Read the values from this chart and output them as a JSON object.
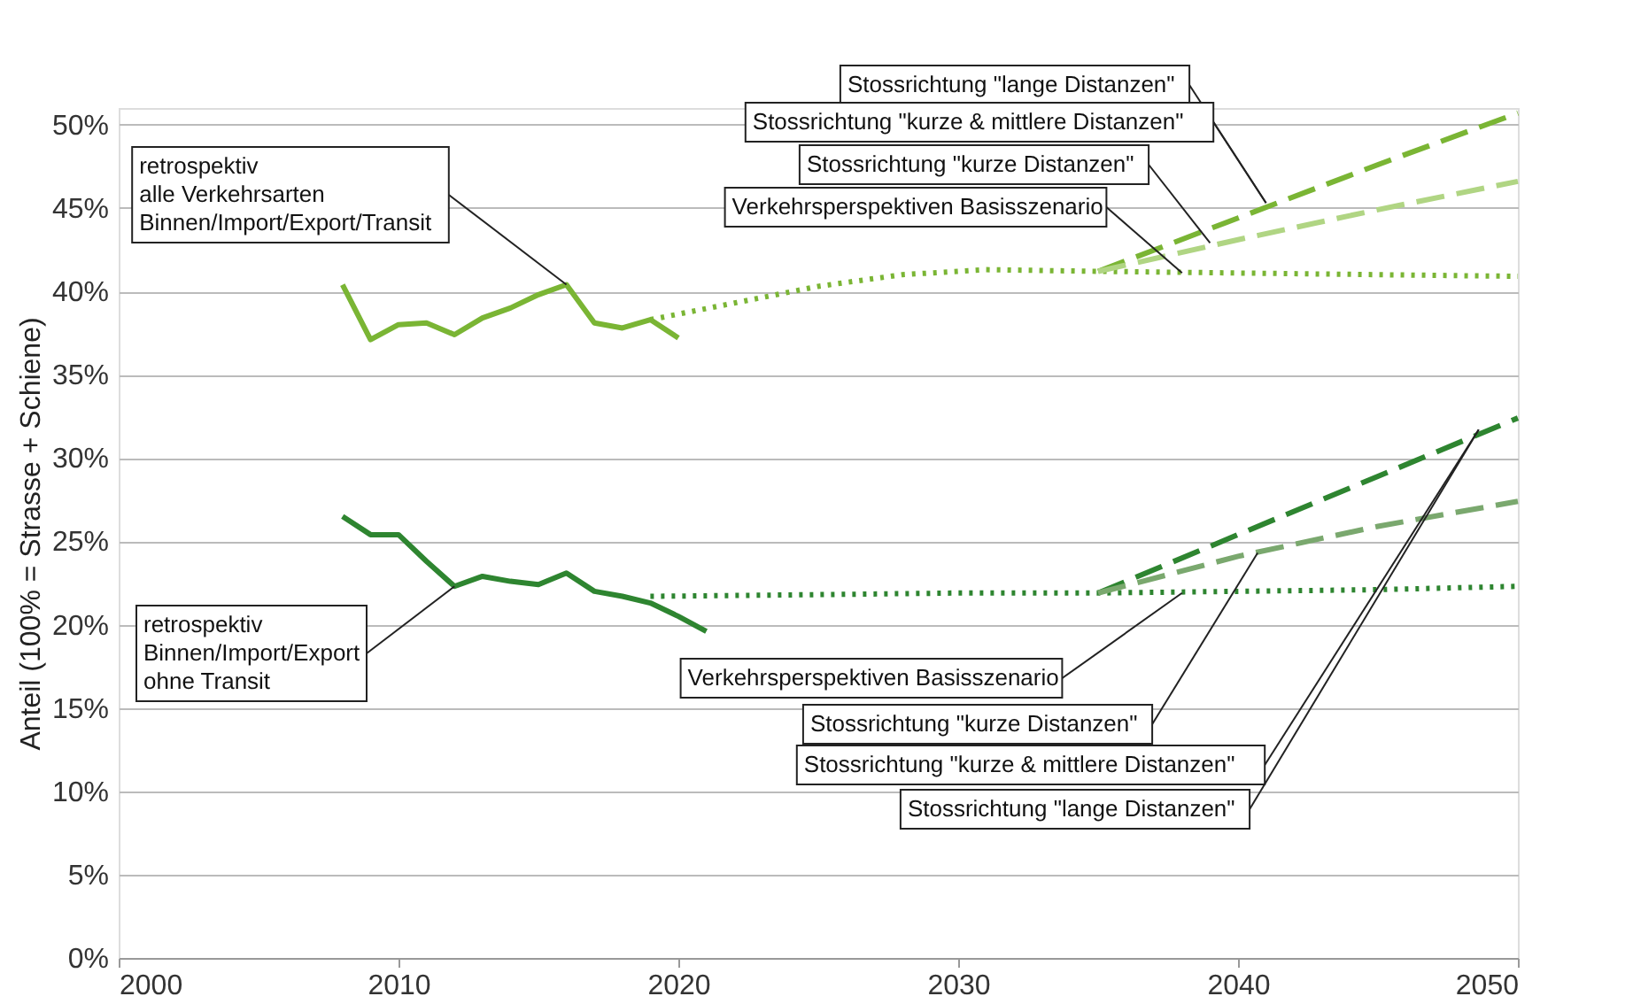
{
  "chart_data": {
    "type": "line",
    "ylabel": "Anteil (100% = Strasse + Schiene)",
    "xlim": [
      2000,
      2050
    ],
    "xticks": [
      2000,
      2010,
      2020,
      2030,
      2040,
      2050
    ],
    "ylim": [
      0,
      51
    ],
    "yticks": [
      {
        "value": 0,
        "label": "0%"
      },
      {
        "value": 5,
        "label": "5%"
      },
      {
        "value": 10,
        "label": "10%"
      },
      {
        "value": 15,
        "label": "15%"
      },
      {
        "value": 20,
        "label": "20%"
      },
      {
        "value": 25,
        "label": "25%"
      },
      {
        "value": 30,
        "label": "30%"
      },
      {
        "value": 35,
        "label": "35%"
      },
      {
        "value": 40,
        "label": "40%"
      },
      {
        "value": 45,
        "label": "45%"
      },
      {
        "value": 50,
        "label": "50%"
      }
    ],
    "grid": "y",
    "series": [
      {
        "color": "#7ab534",
        "line_style": "solid",
        "x": [
          2008,
          2009,
          2010,
          2011,
          2012,
          2013,
          2014,
          2015,
          2016,
          2017,
          2018,
          2019,
          2020
        ],
        "values": [
          40.4,
          37.1,
          38.0,
          38.1,
          37.4,
          38.4,
          39.0,
          39.8,
          40.4,
          38.1,
          37.8,
          38.3,
          37.2
        ]
      },
      {
        "color": "#7ab534",
        "line_style": "dotted",
        "x": [
          2019,
          2022,
          2025,
          2028,
          2031,
          2035,
          2040,
          2045,
          2050
        ],
        "values": [
          38.3,
          39.3,
          40.3,
          41.0,
          41.3,
          41.2,
          41.1,
          41.0,
          40.9
        ]
      },
      {
        "color": "#7ab534",
        "line_style": "dashed",
        "x": [
          2035,
          2040,
          2045,
          2050
        ],
        "values": [
          41.2,
          44.4,
          47.6,
          50.7
        ]
      },
      {
        "color": "#b0d583",
        "line_style": "dashed",
        "x": [
          2035,
          2040,
          2045,
          2050
        ],
        "values": [
          41.2,
          43.1,
          44.9,
          46.6
        ]
      },
      {
        "color": "#2e8530",
        "line_style": "solid",
        "x": [
          2008,
          2009,
          2010,
          2011,
          2012,
          2013,
          2014,
          2015,
          2016,
          2017,
          2018,
          2019,
          2020,
          2021
        ],
        "values": [
          26.5,
          25.4,
          25.4,
          23.8,
          22.3,
          22.9,
          22.6,
          22.4,
          23.1,
          22.0,
          21.7,
          21.3,
          20.5,
          19.6
        ]
      },
      {
        "color": "#2e8530",
        "line_style": "dotted",
        "x": [
          2019,
          2025,
          2030,
          2035,
          2040,
          2045,
          2050
        ],
        "values": [
          21.7,
          21.8,
          21.9,
          21.9,
          22.0,
          22.1,
          22.3
        ]
      },
      {
        "color": "#2e8530",
        "line_style": "dashed",
        "x": [
          2035,
          2040,
          2045,
          2050
        ],
        "values": [
          21.9,
          25.4,
          28.9,
          32.4
        ]
      },
      {
        "color": "#7aa86e",
        "line_style": "dashed",
        "x": [
          2035,
          2040,
          2045,
          2050
        ],
        "values": [
          21.9,
          24.1,
          25.9,
          27.4
        ]
      }
    ],
    "annotations": [
      {
        "text": "retrospektiv\nalle Verkehrsarten\nBinnen/Import/Export/Transit",
        "x": 2016,
        "y": 40.4
      },
      {
        "text": "retrospektiv\nBinnen/Import/Export\nohne Transit",
        "x": 2012,
        "y": 22.3
      },
      {
        "text": "Stossrichtung \"lange Distanzen\"",
        "x": 2041,
        "y": 45.3
      },
      {
        "text": "Stossrichtung \"kurze & mittlere Distanzen\"",
        "x": 2041,
        "y": 45.3
      },
      {
        "text": "Stossrichtung \"kurze Distanzen\"",
        "x": 2039,
        "y": 42.9
      },
      {
        "text": "Verkehrsperspektiven Basisszenario",
        "x": 2038,
        "y": 41.1
      },
      {
        "text": "Verkehrsperspektiven Basisszenario",
        "x": 2038,
        "y": 21.9
      },
      {
        "text": "Stossrichtung \"kurze Distanzen\"",
        "x": 2040.7,
        "y": 24.3
      },
      {
        "text": "Stossrichtung \"kurze & mittlere Distanzen\"",
        "x": 2048.6,
        "y": 31.7
      },
      {
        "text": "Stossrichtung \"lange Distanzen\"",
        "x": 2048.6,
        "y": 31.7
      }
    ]
  }
}
